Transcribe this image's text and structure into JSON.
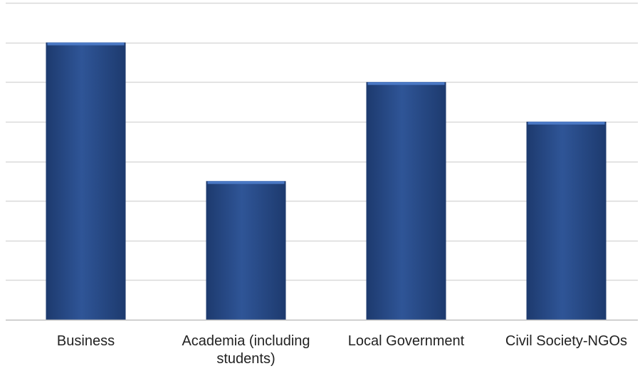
{
  "chart_data": {
    "type": "bar",
    "categories": [
      "Business",
      "Academia (including students)",
      "Local Government",
      "Civil Society-NGOs"
    ],
    "values": [
      7,
      3.5,
      6,
      5
    ],
    "ylim": [
      0,
      8
    ],
    "grid": true,
    "legend": "none",
    "bar_color": "#2f5597",
    "bar_highlight": "#4a78c4",
    "bar_shadow": "#1d3a6e",
    "gridline_color": "#d9d9d9",
    "axis_color": "#bfbfbf"
  }
}
